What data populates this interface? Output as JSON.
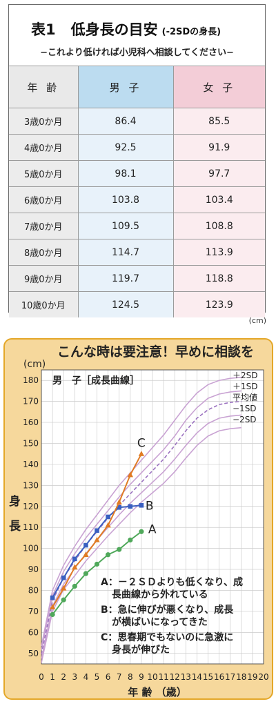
{
  "table": {
    "title_label": "表1",
    "title_text": "低身長の目安",
    "title_small": "(-2SDの身長)",
    "subtitle": "−これより低ければ小児科へ相談してください−",
    "headers": {
      "age": "年 齢",
      "boy": "男 子",
      "girl": "女 子"
    },
    "rows": [
      {
        "age": "3歳0か月",
        "boy": "86.4",
        "girl": "85.5"
      },
      {
        "age": "4歳0か月",
        "boy": "92.5",
        "girl": "91.9"
      },
      {
        "age": "5歳0か月",
        "boy": "98.1",
        "girl": "97.7"
      },
      {
        "age": "6歳0か月",
        "boy": "103.8",
        "girl": "103.4"
      },
      {
        "age": "7歳0か月",
        "boy": "109.5",
        "girl": "108.8"
      },
      {
        "age": "8歳0か月",
        "boy": "114.7",
        "girl": "113.9"
      },
      {
        "age": "9歳0か月",
        "boy": "119.7",
        "girl": "118.8"
      },
      {
        "age": "10歳0か月",
        "boy": "124.5",
        "girl": "123.9"
      }
    ],
    "unit": "(cm)"
  },
  "chart": {
    "title": "こんな時は要注意！早めに相談を",
    "chart_label": "男　子［成長曲線］",
    "y_unit": "(cm)",
    "ylabel_chars": [
      "身",
      "長"
    ],
    "xlabel": "年 齢 （歳）",
    "notes": [
      [
        "A：－２ＳＤよりも低くなり、成",
        "長曲線から外れている"
      ],
      [
        "B：急に伸びが悪くなり、成長",
        "が横ばいになってきた"
      ],
      [
        "C：思春期でもないのに急激に",
        "身長が伸びた"
      ]
    ],
    "colors": {
      "background": "#f6d89c",
      "border": "#e4a728",
      "plot_background": "#ffffff",
      "grid": "#cccccc",
      "sd_curve": "#c9a3d3",
      "mean_curve": "#9b72c0",
      "case_a": "#4fa85a",
      "case_b": "#3a5fc0",
      "case_c": "#e07b24"
    }
  },
  "chart_data": {
    "type": "line",
    "xlim": [
      0,
      20
    ],
    "ylim": [
      45,
      185
    ],
    "x_ticks": [
      0,
      1,
      2,
      3,
      4,
      5,
      6,
      7,
      8,
      9,
      10,
      11,
      12,
      13,
      14,
      15,
      16,
      17,
      18,
      19,
      20
    ],
    "y_ticks": [
      50,
      60,
      70,
      80,
      90,
      100,
      110,
      120,
      130,
      140,
      150,
      160,
      170,
      180
    ],
    "grid": true,
    "reference_curves": [
      {
        "name": "＋2SD",
        "style": "solid",
        "x": [
          0,
          1,
          2,
          3,
          4,
          5,
          6,
          7,
          8,
          9,
          10,
          11,
          12,
          13,
          14,
          15,
          16,
          17,
          18
        ],
        "values": [
          53.5,
          80,
          92,
          101,
          109,
          116,
          123,
          130,
          136,
          142,
          148,
          154,
          161,
          168,
          174,
          178,
          180,
          181,
          181.5
        ]
      },
      {
        "name": "＋1SD",
        "style": "solid",
        "x": [
          0,
          1,
          2,
          3,
          4,
          5,
          6,
          7,
          8,
          9,
          10,
          11,
          12,
          13,
          14,
          15,
          16,
          17,
          18
        ],
        "values": [
          51.5,
          77.5,
          89,
          97.5,
          105,
          111.5,
          118,
          124.5,
          130.5,
          136,
          141.5,
          147,
          153.5,
          161,
          167,
          171.5,
          173.5,
          174.5,
          175
        ]
      },
      {
        "name": "平均値",
        "style": "dashed",
        "x": [
          0,
          1,
          2,
          3,
          4,
          5,
          6,
          7,
          8,
          9,
          10,
          11,
          12,
          13,
          14,
          15,
          16,
          17,
          18
        ],
        "values": [
          49.5,
          75,
          86,
          94,
          101.5,
          108,
          114.5,
          120.5,
          126,
          131.5,
          137,
          142.5,
          149,
          156,
          162,
          166,
          168.5,
          169.5,
          170
        ]
      },
      {
        "name": "−1SD",
        "style": "solid",
        "x": [
          0,
          1,
          2,
          3,
          4,
          5,
          6,
          7,
          8,
          9,
          10,
          11,
          12,
          13,
          14,
          15,
          16,
          17,
          18
        ],
        "values": [
          47.5,
          72.5,
          83,
          90.5,
          97.5,
          104,
          110,
          116,
          121.5,
          126.5,
          131.5,
          136.5,
          142.5,
          149,
          155,
          159.5,
          162,
          163,
          163.5
        ]
      },
      {
        "name": "−2SD",
        "style": "solid",
        "x": [
          0,
          1,
          2,
          3,
          4,
          5,
          6,
          7,
          8,
          9,
          10,
          11,
          12,
          13,
          14,
          15,
          16,
          17,
          18
        ],
        "values": [
          45.5,
          70,
          80.5,
          87,
          94,
          100,
          106,
          111.5,
          117,
          122,
          126.5,
          131,
          136.5,
          143,
          149,
          153.5,
          156,
          157,
          157.5
        ]
      }
    ],
    "series": [
      {
        "name": "A",
        "x": [
          1,
          2,
          3,
          4,
          5,
          6,
          7,
          8,
          9
        ],
        "values": [
          68.5,
          75.5,
          82,
          88,
          92.5,
          97,
          99.5,
          104,
          108
        ]
      },
      {
        "name": "B",
        "x": [
          1,
          2,
          3,
          4,
          5,
          6,
          7,
          8,
          9
        ],
        "values": [
          76.5,
          86,
          95,
          101.5,
          108.5,
          115,
          119.5,
          120,
          120.5
        ]
      },
      {
        "name": "C",
        "x": [
          1,
          2,
          3,
          4,
          5,
          6,
          7,
          8,
          9
        ],
        "values": [
          72,
          81,
          91,
          97,
          104,
          111,
          122,
          135,
          145
        ]
      }
    ]
  }
}
